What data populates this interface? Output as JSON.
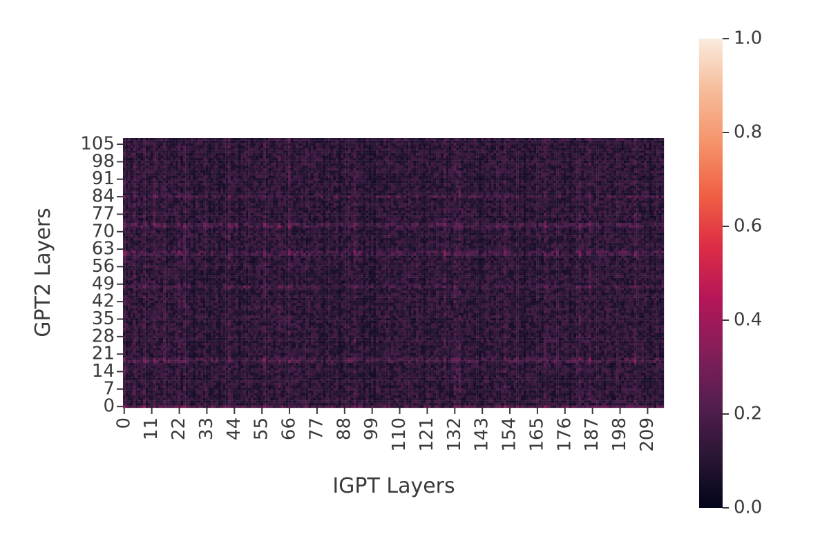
{
  "chart_data": {
    "type": "heatmap",
    "title": "",
    "xlabel": "IGPT Layers",
    "ylabel": "GPT2 Layers",
    "n_cols": 216,
    "n_rows": 108,
    "xticks": [
      "0",
      "11",
      "22",
      "33",
      "44",
      "55",
      "66",
      "77",
      "88",
      "99",
      "110",
      "121",
      "132",
      "143",
      "154",
      "165",
      "176",
      "187",
      "198",
      "209"
    ],
    "yticks": [
      "0",
      "7",
      "14",
      "21",
      "28",
      "35",
      "42",
      "49",
      "56",
      "63",
      "70",
      "77",
      "84",
      "91",
      "98",
      "105"
    ],
    "colorbar": {
      "min": 0.0,
      "max": 1.0,
      "ticks": [
        "0.0",
        "0.2",
        "0.4",
        "0.6",
        "0.8",
        "1.0"
      ],
      "colormap": "rocket"
    },
    "value_range_observed": [
      0.05,
      0.45
    ],
    "high_rows": [
      0,
      18,
      19,
      48,
      61,
      62,
      72,
      73,
      84
    ],
    "high_cols": [
      0,
      4,
      8,
      12,
      16,
      22,
      24,
      42,
      56,
      62,
      66,
      92,
      128,
      132,
      134,
      152,
      168,
      182,
      186,
      204
    ],
    "low_cols": [
      28,
      34,
      38,
      46,
      80,
      86,
      96,
      98,
      100,
      120,
      142,
      160,
      178,
      210
    ],
    "colors": {
      "cmap_stops": [
        "#03051a",
        "#2a1636",
        "#551e4f",
        "#841e5a",
        "#b41658",
        "#dd2c45",
        "#f06043",
        "#f5936a",
        "#f6bc99",
        "#faebdd"
      ],
      "text": "#3a3a3a"
    }
  }
}
